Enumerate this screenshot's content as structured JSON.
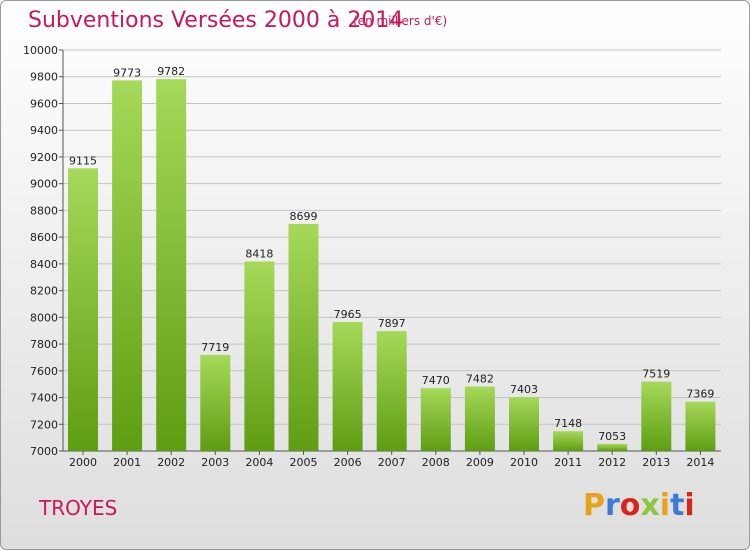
{
  "header": {
    "title": "Subventions Versées 2000 à 2014",
    "subtitle": "(en milliers d'€)"
  },
  "footer": {
    "city": "TROYES",
    "brand": "Proxiti",
    "brand_colors": [
      "#e8a21a",
      "#3a7bd5",
      "#d9261c",
      "#8dc63f",
      "#e8a21a",
      "#3a7bd5",
      "#d9261c"
    ]
  },
  "colors": {
    "title": "#c8185a",
    "bar_light": "#a6d95a",
    "bar_dark": "#5e9d12"
  },
  "chart_data": {
    "type": "bar",
    "title": "Subventions Versées 2000 à 2014",
    "categories": [
      "2000",
      "2001",
      "2002",
      "2003",
      "2004",
      "2005",
      "2006",
      "2007",
      "2008",
      "2009",
      "2010",
      "2011",
      "2012",
      "2013",
      "2014"
    ],
    "values": [
      9115,
      9773,
      9782,
      7719,
      8418,
      8699,
      7965,
      7897,
      7470,
      7482,
      7403,
      7148,
      7053,
      7519,
      7369
    ],
    "ylim": [
      7000,
      10000
    ],
    "yticks": [
      7000,
      7200,
      7400,
      7600,
      7800,
      8000,
      8200,
      8400,
      8600,
      8800,
      9000,
      9200,
      9400,
      9600,
      9800,
      10000
    ],
    "grid": true,
    "data_labels": true
  }
}
